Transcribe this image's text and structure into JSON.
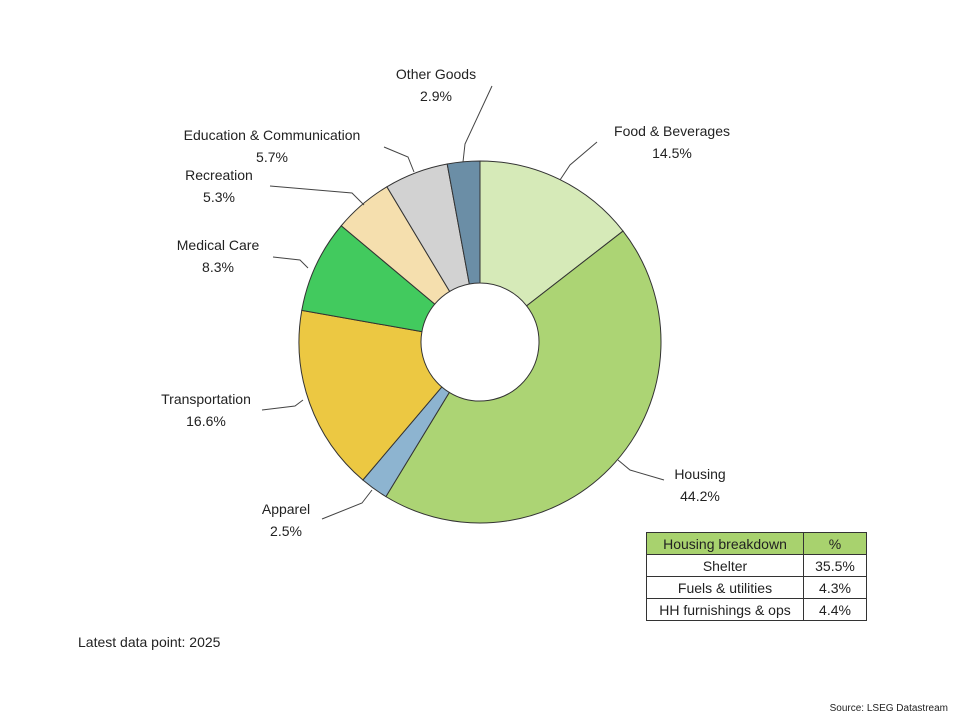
{
  "chart_data": {
    "type": "pie",
    "title": "",
    "categories": [
      "Food & Beverages",
      "Housing",
      "Apparel",
      "Transportation",
      "Medical Care",
      "Recreation",
      "Education & Communication",
      "Other Goods"
    ],
    "values": [
      14.5,
      44.2,
      2.5,
      16.6,
      8.3,
      5.3,
      5.7,
      2.9
    ],
    "value_labels": [
      "14.5%",
      "44.2%",
      "2.5%",
      "16.6%",
      "8.3%",
      "5.3%",
      "5.7%",
      "2.9%"
    ],
    "colors": [
      "#d6eab8",
      "#acd474",
      "#8db4d0",
      "#ecc842",
      "#42ca5e",
      "#f5dfae",
      "#d2d2d2",
      "#6b8ea6"
    ],
    "hole": "donut",
    "start": "12 o'clock",
    "direction": "clockwise"
  },
  "housing_table": {
    "header": [
      "Housing breakdown",
      "%"
    ],
    "rows": [
      [
        "Shelter",
        "35.5%"
      ],
      [
        "Fuels & utilities",
        "4.3%"
      ],
      [
        "HH furnishings & ops",
        "4.4%"
      ]
    ],
    "header_color": "#a8d26e"
  },
  "footnote": "Latest data point: 2025",
  "source": "Source: LSEG Datastream"
}
